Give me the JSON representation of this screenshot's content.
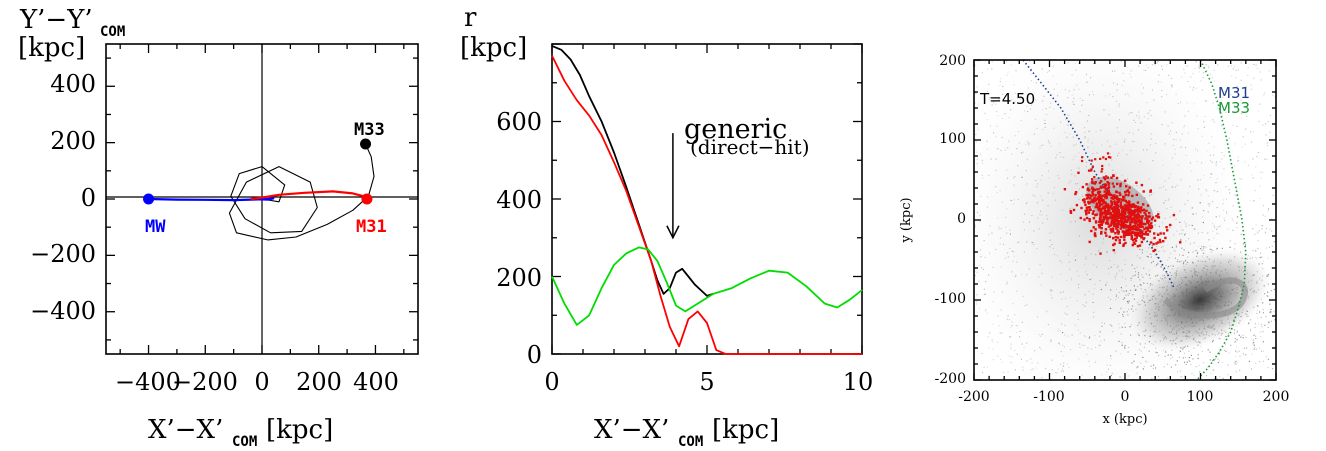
{
  "chart_data": [
    {
      "type": "line",
      "panel": "orbits",
      "ylabel_line1_main": "Y’−Y’",
      "ylabel_line1_sub": "COM",
      "ylabel_line2": "[kpc]",
      "xlabel_main": "X’−X’",
      "xlabel_sub": "COM",
      "xlabel_unit": " [kpc]",
      "xlim": [
        -550,
        550
      ],
      "ylim": [
        -550,
        550
      ],
      "xticks": [
        "−400",
        "−200",
        "0",
        "200",
        "400"
      ],
      "yticks": [
        "400",
        "200",
        "0",
        "−200",
        "−400"
      ],
      "colors": {
        "mw": "#0000ff",
        "m31": "#ff0000",
        "m33": "#000000"
      },
      "labels": {
        "mw": "MW",
        "m31": "M31",
        "m33": "M33"
      },
      "series": [
        {
          "key": "mw",
          "x": [
            -400,
            -300,
            -200,
            -100,
            0,
            40,
            20,
            -20
          ],
          "y": [
            0,
            -2,
            -3,
            -4,
            -1,
            2,
            -2,
            0
          ]
        },
        {
          "key": "m31",
          "x": [
            -40,
            0,
            60,
            150,
            250,
            320,
            365,
            370
          ],
          "y": [
            0,
            5,
            15,
            22,
            27,
            20,
            8,
            0
          ]
        },
        {
          "key": "m33",
          "x": [
            365,
            385,
            395,
            375,
            320,
            230,
            120,
            20,
            -90,
            -115,
            -55,
            60,
            170,
            195,
            140,
            30,
            -60,
            -110,
            -80,
            0,
            80,
            60,
            0
          ],
          "y": [
            195,
            150,
            80,
            10,
            -40,
            -90,
            -135,
            -145,
            -120,
            -50,
            60,
            115,
            60,
            -30,
            -115,
            -120,
            -70,
            10,
            90,
            115,
            50,
            -10,
            0
          ]
        }
      ],
      "markers": [
        {
          "key": "mw",
          "x": -400,
          "y": 0
        },
        {
          "key": "m31",
          "x": 370,
          "y": 0
        },
        {
          "key": "m33",
          "x": 365,
          "y": 195
        }
      ]
    },
    {
      "type": "line",
      "panel": "separation",
      "ylabel_line1": "r",
      "ylabel_line2": "[kpc]",
      "xlabel_main": "X’−X’",
      "xlabel_sub": "COM",
      "xlabel_unit": " [kpc]",
      "xlim": [
        0,
        10
      ],
      "ylim": [
        0,
        800
      ],
      "xticks": [
        0,
        5,
        10
      ],
      "yticks": [
        0,
        200,
        400,
        600
      ],
      "annotation": {
        "line1": "generic",
        "line2": "(direct−hit)",
        "arrow_x": 3.2,
        "arrow_y_top": 570,
        "arrow_y_bottom": 300
      },
      "series": [
        {
          "color": "#000000",
          "x": [
            0,
            0.3,
            0.6,
            0.9,
            1.2,
            1.6,
            2.0,
            2.4,
            2.8,
            3.2,
            3.4,
            3.6,
            3.8,
            4.0,
            4.2,
            4.4,
            4.6,
            4.8,
            5.0,
            5.2
          ],
          "y": [
            795,
            785,
            760,
            720,
            665,
            600,
            520,
            430,
            335,
            240,
            190,
            155,
            170,
            210,
            220,
            200,
            180,
            165,
            150,
            155
          ]
        },
        {
          "color": "#ff0000",
          "x": [
            0,
            0.4,
            0.8,
            1.2,
            1.6,
            2.0,
            2.4,
            2.8,
            3.2,
            3.5,
            3.8,
            4.1,
            4.4,
            4.7,
            5.0,
            5.3,
            5.6,
            6.0,
            7.0,
            8.0,
            9.0,
            10.0
          ],
          "y": [
            770,
            705,
            655,
            615,
            565,
            495,
            420,
            330,
            240,
            150,
            70,
            20,
            90,
            110,
            80,
            10,
            0,
            0,
            0,
            0,
            0,
            0
          ]
        },
        {
          "color": "#00dd00",
          "x": [
            0,
            0.4,
            0.8,
            1.2,
            1.6,
            2.0,
            2.4,
            2.8,
            3.1,
            3.4,
            3.7,
            4.0,
            4.3,
            4.7,
            5.2,
            5.8,
            6.4,
            7.0,
            7.6,
            8.2,
            8.8,
            9.2,
            9.6,
            10.0
          ],
          "y": [
            200,
            130,
            75,
            100,
            170,
            230,
            260,
            275,
            270,
            240,
            185,
            125,
            110,
            130,
            155,
            170,
            195,
            215,
            210,
            175,
            130,
            120,
            140,
            165
          ]
        }
      ]
    },
    {
      "type": "scatter",
      "panel": "simulation",
      "time_label": "T=4.50",
      "xlabel": "x (kpc)",
      "ylabel": "y (kpc)",
      "xlim": [
        -200,
        200
      ],
      "ylim": [
        -200,
        200
      ],
      "xticks": [
        -200,
        -100,
        0,
        100,
        200
      ],
      "yticks": [
        200,
        100,
        0,
        -100,
        -200
      ],
      "legend": [
        {
          "name": "M31",
          "color": "#1f3f8f"
        },
        {
          "name": "M33",
          "color": "#1a9a3a"
        }
      ],
      "trails": [
        {
          "name": "M31",
          "color": "#1f3f8f",
          "x": [
            -135,
            -110,
            -85,
            -60,
            -40,
            -20,
            0,
            20,
            40,
            55,
            65
          ],
          "y": [
            200,
            170,
            140,
            100,
            60,
            30,
            10,
            -15,
            -40,
            -65,
            -85
          ]
        },
        {
          "name": "M33",
          "color": "#1a9a3a",
          "x": [
            100,
            115,
            125,
            135,
            145,
            155,
            160,
            158,
            150,
            140,
            125,
            110,
            95
          ],
          "y": [
            200,
            170,
            140,
            100,
            50,
            0,
            -40,
            -80,
            -110,
            -140,
            -165,
            -185,
            -200
          ]
        }
      ]
    }
  ]
}
